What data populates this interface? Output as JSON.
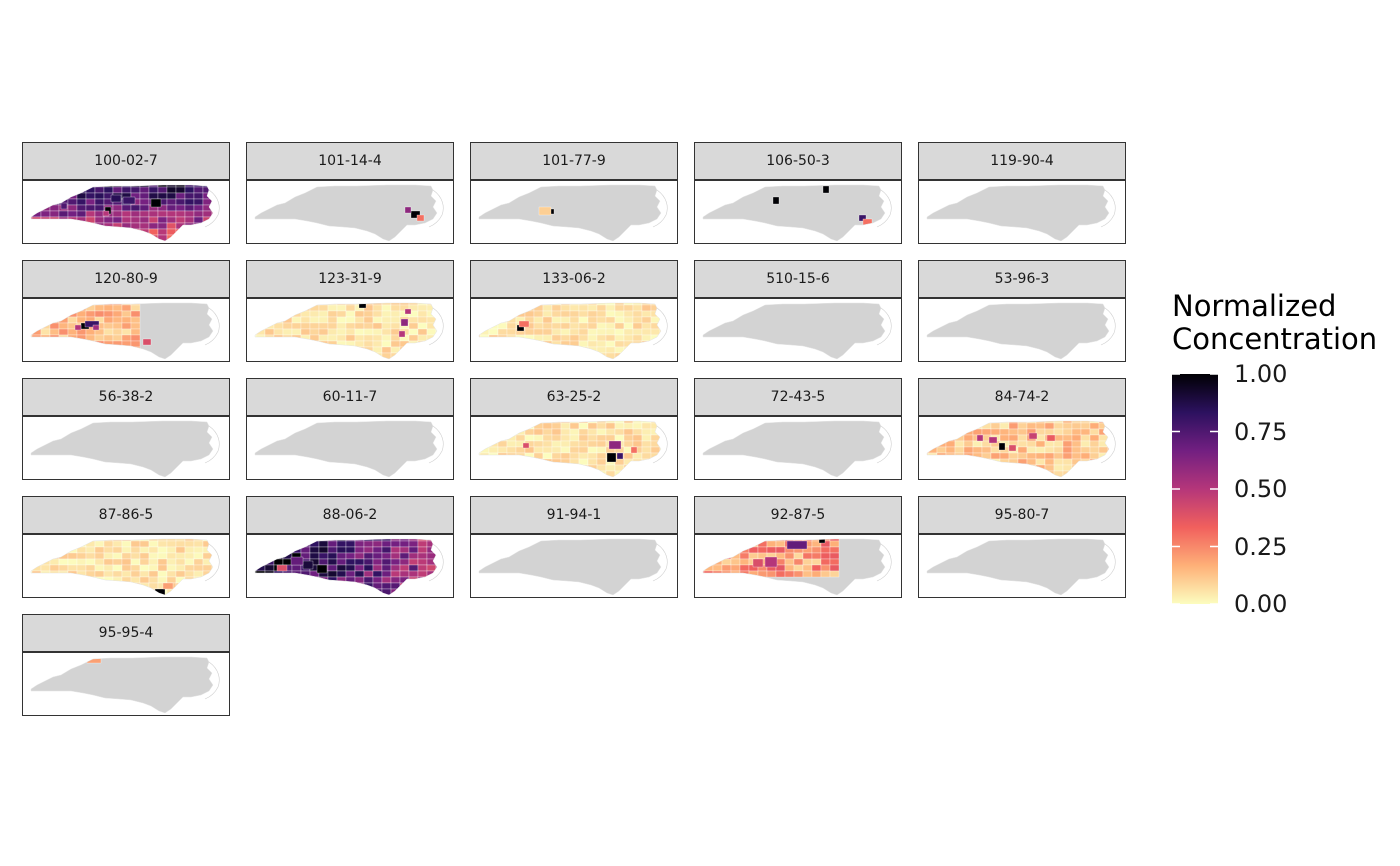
{
  "legend": {
    "title": "Normalized\nConcentration",
    "ticks": [
      "1.00",
      "0.75",
      "0.50",
      "0.25",
      "0.00"
    ],
    "tick_values": [
      1.0,
      0.75,
      0.5,
      0.25,
      0.0
    ],
    "scale": "magma (reversed)",
    "colors": [
      "#fcfdbf",
      "#feb078",
      "#f1605d",
      "#b5367a",
      "#721f81",
      "#2c115f",
      "#000004"
    ],
    "missing_color": "#d3d3d3"
  },
  "panels": [
    {
      "label": "100-02-7",
      "intensity": "high",
      "hotspots": [
        {
          "v": 1.0
        },
        {
          "v": 1.0
        },
        {
          "v": 0.8
        },
        {
          "v": 0.85
        },
        {
          "v": 0.75
        },
        {
          "v": 0.5
        }
      ]
    },
    {
      "label": "101-14-4",
      "intensity": "local",
      "hotspots": [
        {
          "v": 1.0
        },
        {
          "v": 0.6
        },
        {
          "v": 0.3
        }
      ]
    },
    {
      "label": "101-77-9",
      "intensity": "local",
      "hotspots": [
        {
          "v": 1.0
        },
        {
          "v": 0.1
        }
      ]
    },
    {
      "label": "106-50-3",
      "intensity": "local",
      "hotspots": [
        {
          "v": 1.0
        },
        {
          "v": 1.0
        },
        {
          "v": 0.8
        },
        {
          "v": 0.3
        }
      ]
    },
    {
      "label": "119-90-4",
      "intensity": "none",
      "hotspots": []
    },
    {
      "label": "120-80-9",
      "intensity": "west",
      "hotspots": [
        {
          "v": 1.0
        },
        {
          "v": 0.8
        },
        {
          "v": 0.55
        },
        {
          "v": 0.5
        },
        {
          "v": 0.4
        }
      ]
    },
    {
      "label": "123-31-9",
      "intensity": "low",
      "hotspots": [
        {
          "v": 1.0
        },
        {
          "v": 0.6
        },
        {
          "v": 0.5
        },
        {
          "v": 0.5
        }
      ]
    },
    {
      "label": "133-06-2",
      "intensity": "low",
      "hotspots": [
        {
          "v": 1.0
        },
        {
          "v": 0.3
        }
      ]
    },
    {
      "label": "510-15-6",
      "intensity": "none",
      "hotspots": []
    },
    {
      "label": "53-96-3",
      "intensity": "none",
      "hotspots": []
    },
    {
      "label": "56-38-2",
      "intensity": "none",
      "hotspots": []
    },
    {
      "label": "60-11-7",
      "intensity": "none",
      "hotspots": []
    },
    {
      "label": "63-25-2",
      "intensity": "low",
      "hotspots": [
        {
          "v": 1.0
        },
        {
          "v": 0.8
        },
        {
          "v": 0.6
        },
        {
          "v": 0.4
        },
        {
          "v": 0.3
        }
      ]
    },
    {
      "label": "72-43-5",
      "intensity": "none",
      "hotspots": []
    },
    {
      "label": "84-74-2",
      "intensity": "mid",
      "hotspots": [
        {
          "v": 1.0
        },
        {
          "v": 0.5
        },
        {
          "v": 0.45
        },
        {
          "v": 0.5
        },
        {
          "v": 0.4
        },
        {
          "v": 0.35
        }
      ]
    },
    {
      "label": "87-86-5",
      "intensity": "low",
      "hotspots": [
        {
          "v": 1.0
        },
        {
          "v": 0.2
        }
      ]
    },
    {
      "label": "88-06-2",
      "intensity": "veryhigh",
      "hotspots": [
        {
          "v": 1.0
        },
        {
          "v": 0.9
        },
        {
          "v": 0.7
        },
        {
          "v": 0.4
        }
      ]
    },
    {
      "label": "91-94-1",
      "intensity": "none",
      "hotspots": []
    },
    {
      "label": "92-87-5",
      "intensity": "north",
      "hotspots": [
        {
          "v": 1.0
        },
        {
          "v": 0.7
        },
        {
          "v": 0.5
        },
        {
          "v": 0.4
        }
      ]
    },
    {
      "label": "95-80-7",
      "intensity": "none",
      "hotspots": []
    },
    {
      "label": "95-95-4",
      "intensity": "local",
      "hotspots": [
        {
          "v": 1.0
        },
        {
          "v": 0.2
        }
      ]
    }
  ]
}
